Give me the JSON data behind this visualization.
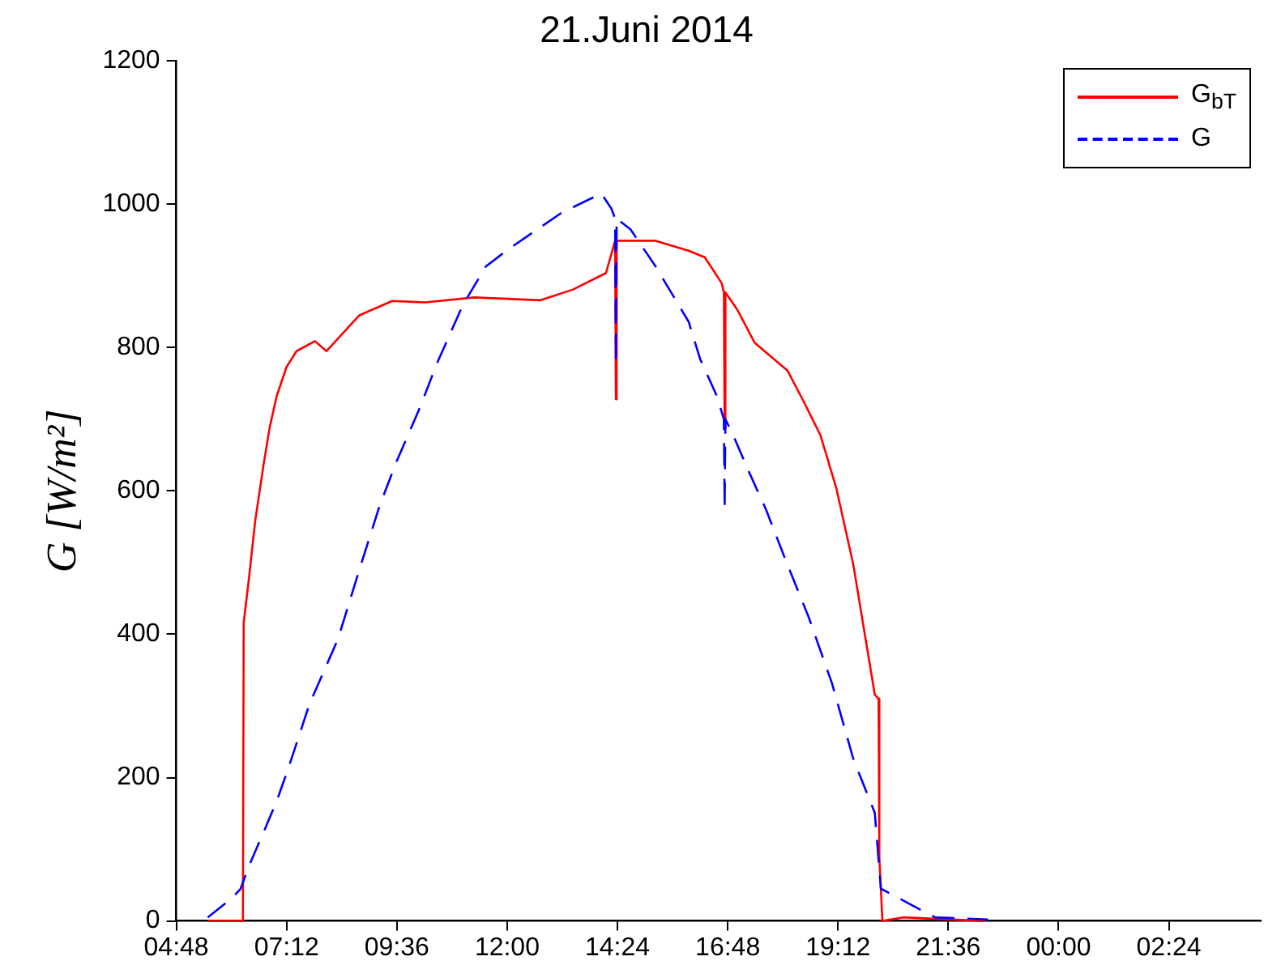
{
  "chart_data": {
    "type": "line",
    "title": "21.Juni 2014",
    "ylabel": "G [W/m²]",
    "xlim": [
      "2014-06-21T04:48",
      "2014-06-22T04:24"
    ],
    "ylim": [
      0,
      1200
    ],
    "xticks": [
      {
        "value": "2014-06-21T04:48",
        "label": "04:48"
      },
      {
        "value": "2014-06-21T07:12",
        "label": "07:12"
      },
      {
        "value": "2014-06-21T09:36",
        "label": "09:36"
      },
      {
        "value": "2014-06-21T12:00",
        "label": "12:00"
      },
      {
        "value": "2014-06-21T14:24",
        "label": "14:24"
      },
      {
        "value": "2014-06-21T16:48",
        "label": "16:48"
      },
      {
        "value": "2014-06-21T19:12",
        "label": "19:12"
      },
      {
        "value": "2014-06-21T21:36",
        "label": "21:36"
      },
      {
        "value": "2014-06-22T00:00",
        "label": "00:00"
      },
      {
        "value": "2014-06-22T02:24",
        "label": "02:24"
      }
    ],
    "yticks": [
      0,
      200,
      400,
      600,
      800,
      1000,
      1200
    ],
    "grid": false,
    "legend": "top right",
    "marker": "none",
    "series": [
      {
        "name": "G$_{bT}$",
        "color": "#ff0000",
        "line_style": "solid",
        "x": [
          "2014-06-21T05:29",
          "2014-06-21T06:15",
          "2014-06-21T06:16",
          "2014-06-21T06:23",
          "2014-06-21T06:31",
          "2014-06-21T06:42",
          "2014-06-21T06:50",
          "2014-06-21T06:59",
          "2014-06-21T07:12",
          "2014-06-21T07:25",
          "2014-06-21T07:49",
          "2014-06-21T08:04",
          "2014-06-21T08:47",
          "2014-06-21T09:30",
          "2014-06-21T10:13",
          "2014-06-21T11:17",
          "2014-06-21T12:43",
          "2014-06-21T13:26",
          "2014-06-21T14:09",
          "2014-06-21T14:21",
          "2014-06-21T14:22",
          "2014-06-21T14:23",
          "2014-06-21T15:14",
          "2014-06-21T15:57",
          "2014-06-21T16:18",
          "2014-06-21T16:40",
          "2014-06-21T16:43",
          "2014-06-21T16:44",
          "2014-06-21T16:45",
          "2014-06-21T17:01",
          "2014-06-21T17:23",
          "2014-06-21T18:06",
          "2014-06-21T18:28",
          "2014-06-21T18:49",
          "2014-06-21T19:10",
          "2014-06-21T19:32",
          "2014-06-21T19:47",
          "2014-06-21T20:00",
          "2014-06-21T20:05",
          "2014-06-21T20:06",
          "2014-06-21T20:10",
          "2014-06-21T20:37",
          "2014-06-21T22:24"
        ],
        "values": [
          0,
          0,
          416,
          479,
          558,
          637,
          689,
          732,
          773,
          795,
          809,
          795,
          845,
          865,
          863,
          870,
          866,
          881,
          904,
          949,
          728,
          949,
          949,
          935,
          926,
          890,
          877,
          687,
          877,
          852,
          807,
          768,
          723,
          678,
          603,
          497,
          400,
          316,
          310,
          88,
          0,
          5,
          0
        ]
      },
      {
        "name": "G",
        "color": "#0000ff",
        "line_style": "dashed",
        "x": [
          "2014-06-21T05:29",
          "2014-06-21T06:01",
          "2014-06-21T06:12",
          "2014-06-21T06:23",
          "2014-06-21T06:44",
          "2014-06-21T06:59",
          "2014-06-21T07:14",
          "2014-06-21T07:42",
          "2014-06-21T08:19",
          "2014-06-21T08:47",
          "2014-06-21T09:14",
          "2014-06-21T09:36",
          "2014-06-21T10:06",
          "2014-06-21T10:28",
          "2014-06-21T11:02",
          "2014-06-21T11:32",
          "2014-06-21T12:00",
          "2014-06-21T13:11",
          "2014-06-21T14:03",
          "2014-06-21T14:16",
          "2014-06-21T14:21",
          "2014-06-21T14:22",
          "2014-06-21T14:23",
          "2014-06-21T14:41",
          "2014-06-21T15:14",
          "2014-06-21T15:57",
          "2014-06-21T16:12",
          "2014-06-21T16:34",
          "2014-06-21T16:43",
          "2014-06-21T16:44",
          "2014-06-21T16:45",
          "2014-06-21T16:55",
          "2014-06-21T17:16",
          "2014-06-21T17:38",
          "2014-06-21T18:06",
          "2014-06-21T18:34",
          "2014-06-21T19:04",
          "2014-06-21T19:32",
          "2014-06-21T20:00",
          "2014-06-21T20:08",
          "2014-06-21T20:52",
          "2014-06-21T21:19",
          "2014-06-21T22:28"
        ],
        "values": [
          5,
          32,
          45,
          77,
          129,
          167,
          212,
          303,
          393,
          490,
          581,
          642,
          716,
          777,
          859,
          913,
          936,
          988,
          1015,
          994,
          980,
          777,
          980,
          965,
          913,
          836,
          784,
          732,
          700,
          574,
          700,
          678,
          626,
          574,
          497,
          423,
          332,
          226,
          151,
          45,
          20,
          5,
          2
        ]
      }
    ]
  }
}
